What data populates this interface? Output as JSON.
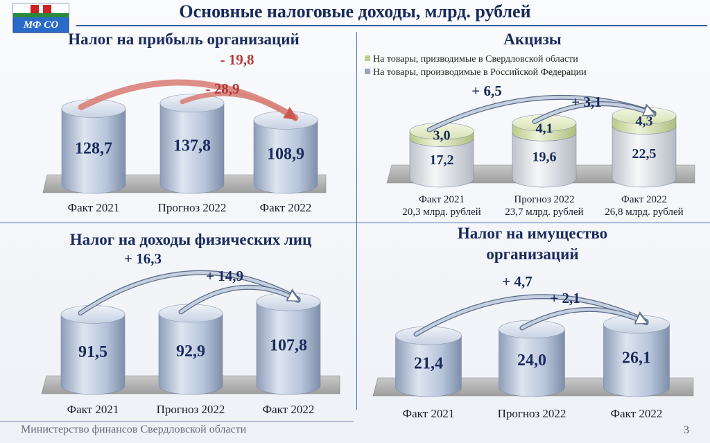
{
  "page": {
    "title": "Основные налоговые доходы, млрд. рублей",
    "logo_text": "МФ СО",
    "footer": "Министерство финансов Свердловской области",
    "page_number": "3"
  },
  "colors": {
    "title": "#1a2a5c",
    "cylinder": "#b9c7dc",
    "excise_top": "#dfe8c4",
    "excise_body": "#eceff3",
    "arrow_red": "#b23a3a",
    "arrow_gray": "#b9c7dc",
    "platform": "#b7b7b7"
  },
  "chart_data": [
    {
      "type": "bar",
      "title": "Налог на прибыль организаций",
      "categories": [
        "Факт 2021",
        "Прогноз 2022",
        "Факт 2022"
      ],
      "values": [
        128.7,
        137.8,
        108.9
      ],
      "value_labels": [
        "128,7",
        "137,8",
        "108,9"
      ],
      "annotations": [
        {
          "text": "- 19,8",
          "from": "Факт 2021",
          "to": "Факт 2022"
        },
        {
          "text": "- 28,9",
          "from": "Прогноз 2022",
          "to": "Факт 2022"
        }
      ]
    },
    {
      "type": "bar",
      "stacked": true,
      "title": "Акцизы",
      "categories": [
        "Факт 2021",
        "Прогноз 2022",
        "Факт 2022"
      ],
      "category_sublabels": [
        "20,3 млрд. рублей",
        "23,7 млрд. рублей",
        "26,8 млрд. рублей"
      ],
      "series": [
        {
          "name": "На товары, производимые в Российской Федерации",
          "values": [
            17.2,
            19.6,
            22.5
          ],
          "labels": [
            "17,2",
            "19,6",
            "22,5"
          ]
        },
        {
          "name": "На товары, призводимые в Свердловской области",
          "values": [
            3.0,
            4.1,
            4.3
          ],
          "labels": [
            "3,0",
            "4,1",
            "4,3"
          ]
        }
      ],
      "legend": [
        "На товары, призводимые в Свердловской области",
        "На товары, производимые в Российской Федерации"
      ],
      "legend_position": "top",
      "annotations": [
        {
          "text": "+ 6,5",
          "from": "Факт 2021",
          "to": "Факт 2022"
        },
        {
          "text": "+ 3,1",
          "from": "Прогноз 2022",
          "to": "Факт 2022"
        }
      ]
    },
    {
      "type": "bar",
      "title": "Налог на доходы физических лиц",
      "categories": [
        "Факт 2021",
        "Прогноз 2022",
        "Факт 2022"
      ],
      "values": [
        91.5,
        92.9,
        107.8
      ],
      "value_labels": [
        "91,5",
        "92,9",
        "107,8"
      ],
      "annotations": [
        {
          "text": "+ 16,3",
          "from": "Факт 2021",
          "to": "Факт 2022"
        },
        {
          "text": "+ 14,9",
          "from": "Прогноз 2022",
          "to": "Факт 2022"
        }
      ]
    },
    {
      "type": "bar",
      "title": "Налог на имущество организаций",
      "title_lines": [
        "Налог на имущество",
        "организаций"
      ],
      "categories": [
        "Факт 2021",
        "Прогноз 2022",
        "Факт 2022"
      ],
      "values": [
        21.4,
        24.0,
        26.1
      ],
      "value_labels": [
        "21,4",
        "24,0",
        "26,1"
      ],
      "annotations": [
        {
          "text": "+ 4,7",
          "from": "Факт 2021",
          "to": "Факт 2022"
        },
        {
          "text": "+ 2,1",
          "from": "Прогноз 2022",
          "to": "Факт 2022"
        }
      ]
    }
  ]
}
